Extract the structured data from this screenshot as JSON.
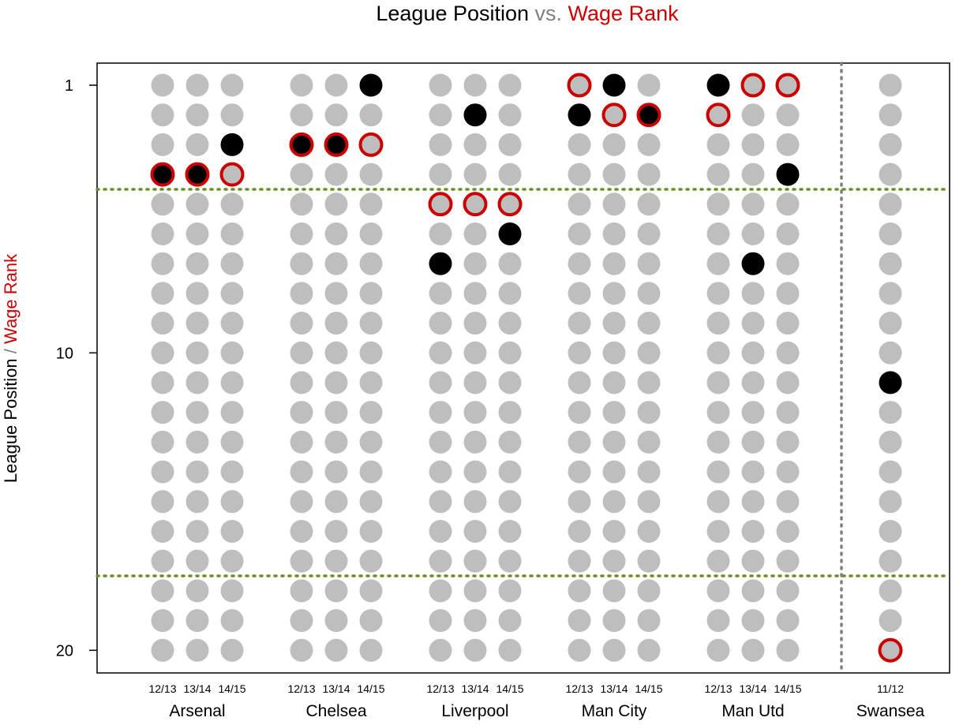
{
  "chart_data": {
    "type": "scatter",
    "title": {
      "part1": "League Position",
      "part2": " vs. ",
      "part3": "Wage Rank"
    },
    "ylabel": {
      "part1": "League Position",
      "part2": " / ",
      "part3": "Wage Rank"
    },
    "colors": {
      "dot": "#bebebe",
      "position": "#000000",
      "wage": "#cc0000",
      "reference": "#6b8e23",
      "separator": "#808080",
      "separator_text": "#808080"
    },
    "y_range": [
      1,
      20
    ],
    "y_ticks": [
      "1",
      "10",
      "20"
    ],
    "reference_lines": [
      4.5,
      17.5
    ],
    "separator_after_team_index": 4,
    "legend": "none",
    "grid": false,
    "teams": [
      {
        "name": "Arsenal",
        "seasons": [
          {
            "label": "12/13",
            "position": 4,
            "wage_rank": 4
          },
          {
            "label": "13/14",
            "position": 4,
            "wage_rank": 4
          },
          {
            "label": "14/15",
            "position": 3,
            "wage_rank": 4
          }
        ]
      },
      {
        "name": "Chelsea",
        "seasons": [
          {
            "label": "12/13",
            "position": 3,
            "wage_rank": 3
          },
          {
            "label": "13/14",
            "position": 3,
            "wage_rank": 3
          },
          {
            "label": "14/15",
            "position": 1,
            "wage_rank": 3
          }
        ]
      },
      {
        "name": "Liverpool",
        "seasons": [
          {
            "label": "12/13",
            "position": 7,
            "wage_rank": 5
          },
          {
            "label": "13/14",
            "position": 2,
            "wage_rank": 5
          },
          {
            "label": "14/15",
            "position": 6,
            "wage_rank": 5
          }
        ]
      },
      {
        "name": "Man City",
        "seasons": [
          {
            "label": "12/13",
            "position": 2,
            "wage_rank": 1
          },
          {
            "label": "13/14",
            "position": 1,
            "wage_rank": 2
          },
          {
            "label": "14/15",
            "position": 2,
            "wage_rank": 2
          }
        ]
      },
      {
        "name": "Man Utd",
        "seasons": [
          {
            "label": "12/13",
            "position": 1,
            "wage_rank": 2
          },
          {
            "label": "13/14",
            "position": 7,
            "wage_rank": 1
          },
          {
            "label": "14/15",
            "position": 4,
            "wage_rank": 1
          }
        ]
      },
      {
        "name": "Swansea",
        "seasons": [
          {
            "label": "11/12",
            "position": 11,
            "wage_rank": 20
          }
        ]
      }
    ]
  }
}
